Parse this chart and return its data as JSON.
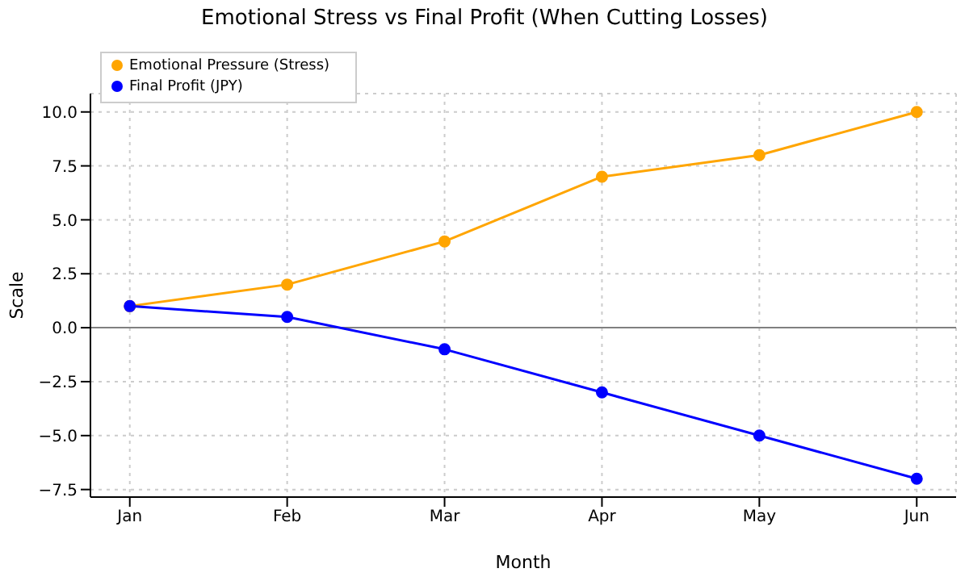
{
  "chart_data": {
    "type": "line",
    "title": "Emotional Stress vs Final Profit (When Cutting Losses)",
    "xlabel": "Month",
    "ylabel": "Scale",
    "categories": [
      "Jan",
      "Feb",
      "Mar",
      "Apr",
      "May",
      "Jun"
    ],
    "series": [
      {
        "name": "Emotional Pressure (Stress)",
        "color": "#ffa500",
        "values": [
          1,
          2,
          4,
          7,
          8,
          10
        ]
      },
      {
        "name": "Final Profit (JPY)",
        "color": "#0000ff",
        "values": [
          1,
          0.5,
          -1,
          -3,
          -5,
          -7
        ]
      }
    ],
    "ylim": [
      -7.85,
      10.85
    ],
    "yticks": [
      {
        "value": -7.5,
        "label": "−7.5"
      },
      {
        "value": -5,
        "label": "−5.0"
      },
      {
        "value": -2.5,
        "label": "−2.5"
      },
      {
        "value": 0,
        "label": "0.0"
      },
      {
        "value": 2.5,
        "label": "2.5"
      },
      {
        "value": 5,
        "label": "5.0"
      },
      {
        "value": 7.5,
        "label": "7.5"
      },
      {
        "value": 10,
        "label": "10.0"
      }
    ],
    "ref_lines": [
      {
        "axis": "y",
        "value": 0,
        "color": "#808080"
      }
    ],
    "grid": true,
    "legend": "top left",
    "marker": "circle",
    "line_style": "solid"
  }
}
